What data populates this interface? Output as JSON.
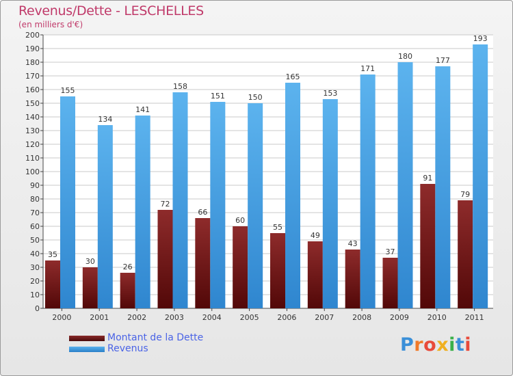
{
  "header": {
    "title": "Revenus/Dette - LESCHELLES",
    "subtitle": "(en milliers d'€)"
  },
  "chart_data": {
    "type": "bar",
    "categories": [
      "2000",
      "2001",
      "2002",
      "2003",
      "2004",
      "2005",
      "2006",
      "2007",
      "2008",
      "2009",
      "2010",
      "2011"
    ],
    "series": [
      {
        "name": "Montant de la Dette",
        "values": [
          35,
          30,
          26,
          72,
          66,
          60,
          55,
          49,
          43,
          37,
          91,
          79
        ],
        "color": "#7a1a1a"
      },
      {
        "name": "Revenus",
        "values": [
          155,
          134,
          141,
          158,
          151,
          150,
          165,
          153,
          171,
          180,
          177,
          193
        ],
        "color": "#4aa3e6"
      }
    ],
    "ylim": [
      0,
      200
    ],
    "ytick_step": 10,
    "grid": true,
    "legend_position": "bottom-left"
  },
  "logo": {
    "text": "Proxiti"
  }
}
